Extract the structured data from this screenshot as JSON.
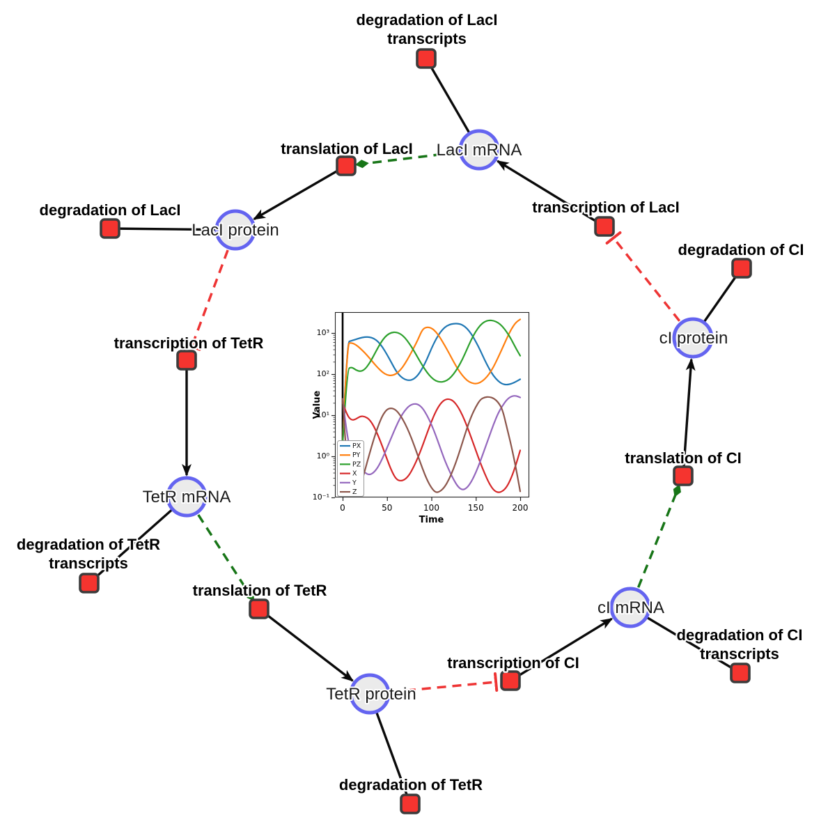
{
  "diagram": {
    "species": [
      {
        "id": "laci-mrna",
        "label": "LacI mRNA"
      },
      {
        "id": "laci-protein",
        "label": "LacI protein"
      },
      {
        "id": "tetr-mrna",
        "label": "TetR mRNA"
      },
      {
        "id": "tetr-protein",
        "label": "TetR protein"
      },
      {
        "id": "ci-mrna",
        "label": "cI mRNA"
      },
      {
        "id": "ci-protein",
        "label": "cI protein"
      }
    ],
    "reactions": [
      {
        "id": "degradation-of-laci-transcripts",
        "label_lines": [
          "degradation of LacI",
          "transcripts"
        ]
      },
      {
        "id": "translation-of-laci",
        "label_lines": [
          "translation of LacI"
        ]
      },
      {
        "id": "transcription-of-laci",
        "label_lines": [
          "transcription of LacI"
        ]
      },
      {
        "id": "degradation-of-laci",
        "label_lines": [
          "degradation of LacI"
        ]
      },
      {
        "id": "transcription-of-tetr",
        "label_lines": [
          "transcription of TetR"
        ]
      },
      {
        "id": "degradation-of-tetr-transcripts",
        "label_lines": [
          "degradation of TetR",
          "transcripts"
        ]
      },
      {
        "id": "translation-of-tetr",
        "label_lines": [
          "translation of TetR"
        ]
      },
      {
        "id": "degradation-of-tetr",
        "label_lines": [
          "degradation of TetR"
        ]
      },
      {
        "id": "transcription-of-ci",
        "label_lines": [
          "transcription of CI"
        ]
      },
      {
        "id": "degradation-of-ci-transcripts",
        "label_lines": [
          "degradation of CI",
          "transcripts"
        ]
      },
      {
        "id": "translation-of-ci",
        "label_lines": [
          "translation of CI"
        ]
      },
      {
        "id": "degradation-of-ci",
        "label_lines": [
          "degradation of CI"
        ]
      }
    ],
    "edges": [
      {
        "from": "LacI mRNA",
        "to": "degradation of LacI transcripts",
        "type": "consumption"
      },
      {
        "from": "LacI protein",
        "to": "degradation of LacI",
        "type": "consumption"
      },
      {
        "from": "TetR mRNA",
        "to": "degradation of TetR transcripts",
        "type": "consumption"
      },
      {
        "from": "TetR protein",
        "to": "degradation of TetR",
        "type": "consumption"
      },
      {
        "from": "cI mRNA",
        "to": "degradation of CI transcripts",
        "type": "consumption"
      },
      {
        "from": "cI protein",
        "to": "degradation of CI",
        "type": "consumption"
      },
      {
        "from": "transcription of LacI",
        "to": "LacI mRNA",
        "type": "production"
      },
      {
        "from": "translation of LacI",
        "to": "LacI protein",
        "type": "production"
      },
      {
        "from": "transcription of TetR",
        "to": "TetR mRNA",
        "type": "production"
      },
      {
        "from": "translation of TetR",
        "to": "TetR protein",
        "type": "production"
      },
      {
        "from": "transcription of CI",
        "to": "cI mRNA",
        "type": "production"
      },
      {
        "from": "translation of CI",
        "to": "cI protein",
        "type": "production"
      },
      {
        "from": "LacI mRNA",
        "to": "translation of LacI",
        "type": "modifier"
      },
      {
        "from": "TetR mRNA",
        "to": "translation of TetR",
        "type": "modifier"
      },
      {
        "from": "cI mRNA",
        "to": "translation of CI",
        "type": "modifier"
      },
      {
        "from": "LacI protein",
        "to": "transcription of TetR",
        "type": "inhibition"
      },
      {
        "from": "TetR protein",
        "to": "transcription of CI",
        "type": "inhibition"
      },
      {
        "from": "cI protein",
        "to": "transcription of LacI",
        "type": "inhibition"
      }
    ],
    "colors": {
      "species_fill": "#ebebeb",
      "species_border": "#6464f0",
      "reaction_fill": "#f5342f",
      "reaction_border": "#3c3c3c",
      "edge_black": "#0a0a0a",
      "edge_modifier_green": "#177517",
      "edge_inhibition_red": "#ee3434"
    }
  },
  "chart_data": {
    "type": "line",
    "title": "",
    "xlabel": "Time",
    "ylabel": "Value",
    "y_scale": "log",
    "xlim": [
      -9,
      210
    ],
    "ylim": [
      0.1,
      3200
    ],
    "x_ticks": [
      0,
      50,
      100,
      150,
      200
    ],
    "y_tick_labels": [
      "10³",
      "10²",
      "10¹",
      "10⁰",
      "10⁻¹"
    ],
    "legend_position": "lower left",
    "initial_spike_at_x": 0,
    "x": [
      0,
      5,
      10,
      15,
      20,
      25,
      30,
      35,
      40,
      45,
      50,
      55,
      60,
      65,
      70,
      75,
      80,
      85,
      90,
      95,
      100,
      105,
      110,
      115,
      120,
      125,
      130,
      135,
      140,
      145,
      150,
      155,
      160,
      165,
      170,
      175,
      180,
      185,
      190,
      195,
      200
    ],
    "series": [
      {
        "name": "PX",
        "color": "#1f77b4",
        "values": [
          2,
          600,
          650,
          700,
          760,
          800,
          800,
          740,
          620,
          450,
          300,
          190,
          120,
          88,
          74,
          70,
          75,
          95,
          140,
          230,
          420,
          700,
          1050,
          1380,
          1600,
          1690,
          1700,
          1580,
          1300,
          950,
          620,
          380,
          220,
          135,
          90,
          68,
          57,
          55,
          58,
          65,
          75
        ]
      },
      {
        "name": "PY",
        "color": "#ff7f0e",
        "values": [
          2,
          560,
          580,
          520,
          420,
          330,
          250,
          185,
          140,
          110,
          95,
          92,
          100,
          125,
          175,
          270,
          430,
          700,
          1250,
          1400,
          1330,
          1080,
          760,
          500,
          320,
          200,
          130,
          92,
          70,
          61,
          58,
          62,
          75,
          100,
          150,
          250,
          430,
          750,
          1250,
          1800,
          2150
        ]
      },
      {
        "name": "PZ",
        "color": "#2ca02c",
        "values": [
          2,
          130,
          150,
          125,
          115,
          130,
          180,
          280,
          450,
          680,
          900,
          1030,
          1050,
          960,
          780,
          560,
          380,
          245,
          160,
          110,
          82,
          68,
          64,
          66,
          76,
          100,
          145,
          230,
          400,
          700,
          1100,
          1550,
          1900,
          2050,
          2000,
          1800,
          1450,
          1050,
          700,
          430,
          280
        ]
      },
      {
        "name": "X",
        "color": "#d62728",
        "values": [
          20,
          10,
          7.5,
          8,
          9.5,
          9.3,
          8,
          5.5,
          3.2,
          1.7,
          0.85,
          0.45,
          0.28,
          0.25,
          0.27,
          0.35,
          0.55,
          0.95,
          1.8,
          3.6,
          7,
          12.5,
          19,
          24,
          25,
          22,
          16,
          10,
          5.5,
          2.8,
          1.4,
          0.7,
          0.38,
          0.22,
          0.15,
          0.13,
          0.14,
          0.18,
          0.3,
          0.6,
          1.4
        ]
      },
      {
        "name": "Y",
        "color": "#9467bd",
        "values": [
          25,
          3,
          1.2,
          0.7,
          0.5,
          0.4,
          0.35,
          0.4,
          0.55,
          0.9,
          1.6,
          2.9,
          5.2,
          8.8,
          13,
          17,
          19,
          18.5,
          15,
          10,
          6,
          3.2,
          1.6,
          0.8,
          0.45,
          0.27,
          0.18,
          0.15,
          0.17,
          0.24,
          0.4,
          0.75,
          1.5,
          3,
          6,
          11,
          17,
          24,
          29,
          30,
          27
        ]
      },
      {
        "name": "Z",
        "color": "#8c564b",
        "values": [
          25,
          0.5,
          0.09,
          0.1,
          0.18,
          0.45,
          1.1,
          2.6,
          5.5,
          10,
          14,
          15,
          13.5,
          10,
          6.5,
          3.8,
          2,
          1,
          0.5,
          0.27,
          0.17,
          0.13,
          0.14,
          0.18,
          0.28,
          0.5,
          1,
          2.2,
          4.8,
          9.5,
          16,
          24,
          27.5,
          28,
          26,
          21,
          14,
          5,
          1.8,
          0.55,
          0.14
        ]
      }
    ]
  }
}
